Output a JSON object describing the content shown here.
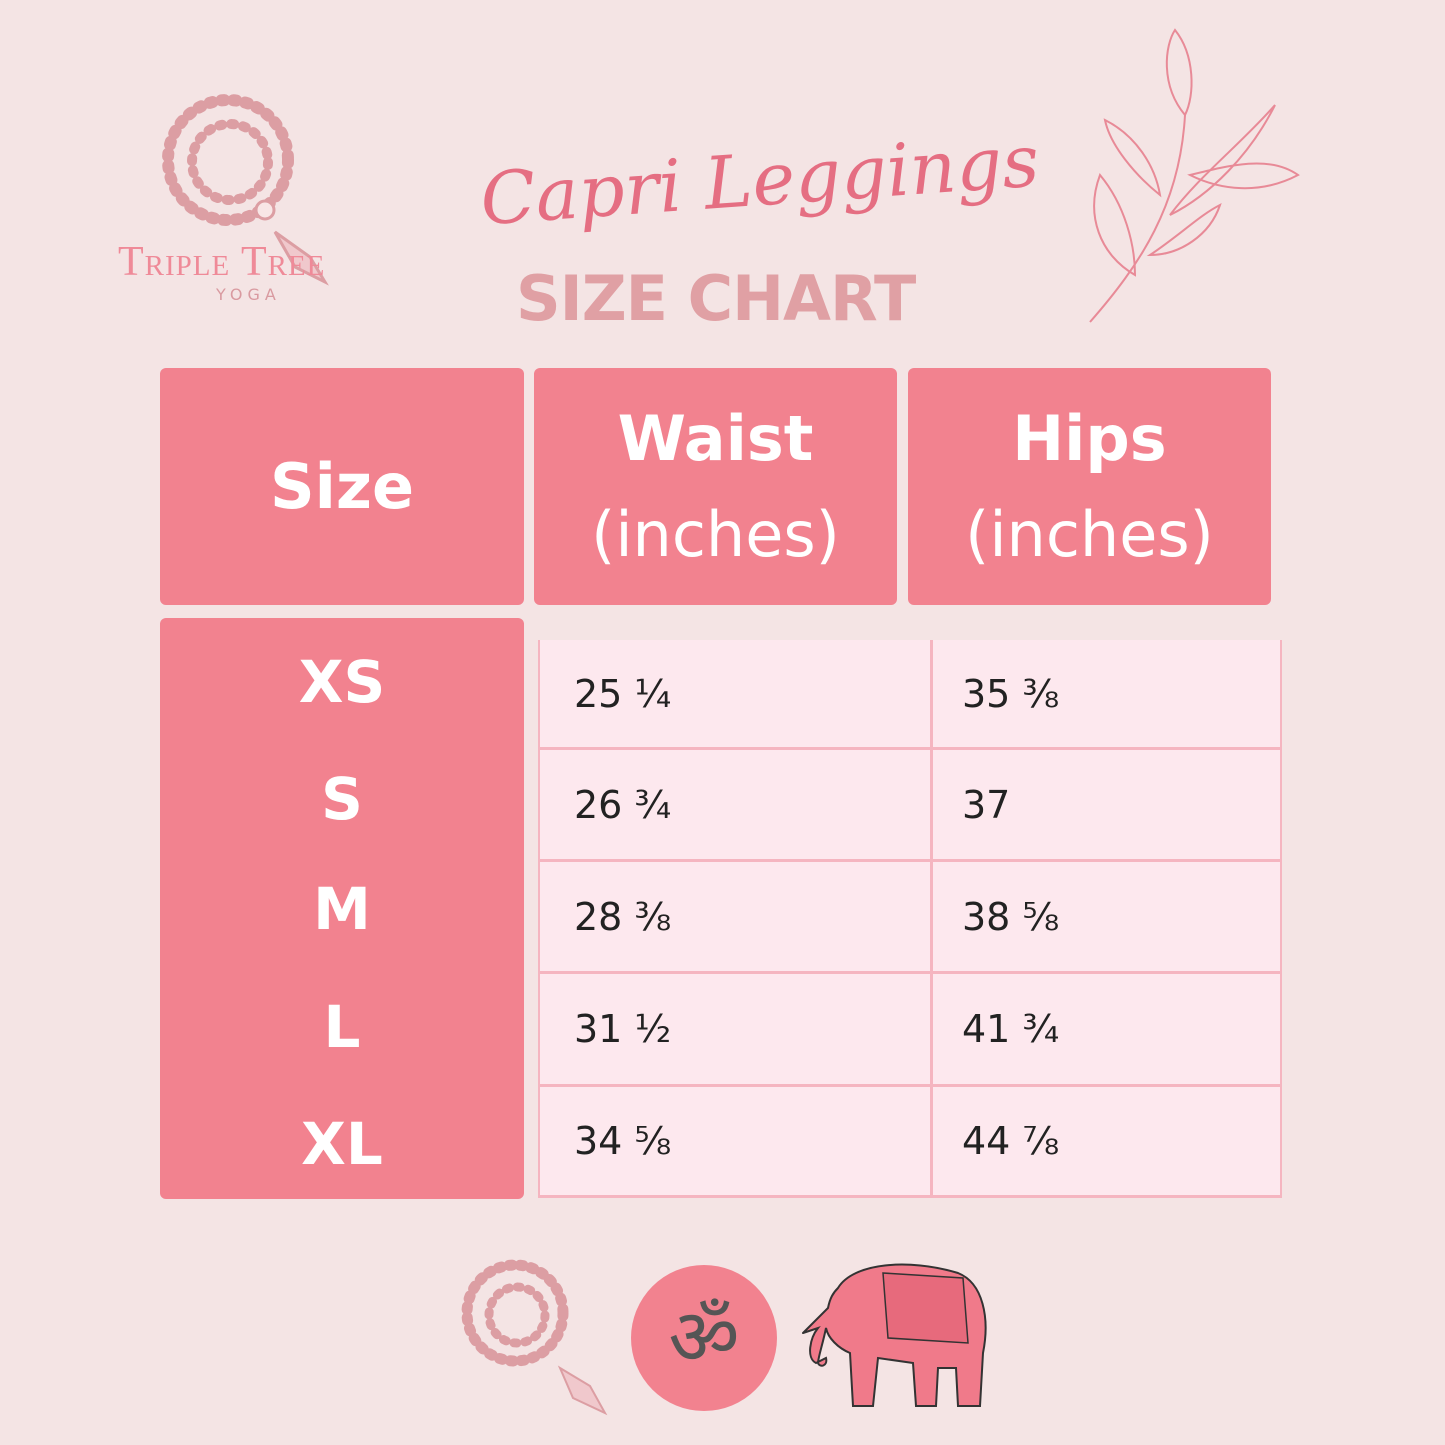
{
  "brand": {
    "name": "Triple Tree",
    "sub": "YOGA"
  },
  "title": {
    "script": "Capri Leggings",
    "main": "SIZE CHART"
  },
  "table": {
    "headers": {
      "size": "Size",
      "waist_line1": "Waist",
      "waist_line2": "(inches)",
      "hips_line1": "Hips",
      "hips_line2": "(inches)"
    },
    "rows": [
      {
        "size": "XS",
        "waist": "25 ¼",
        "hips": "35 ⅜"
      },
      {
        "size": "S",
        "waist": "26 ¾",
        "hips": "37"
      },
      {
        "size": "M",
        "waist": "28 ⅜",
        "hips": "38 ⅝"
      },
      {
        "size": "L",
        "waist": "31 ½",
        "hips": "41 ¾"
      },
      {
        "size": "XL",
        "waist": "34 ⅝",
        "hips": "44 ⅞"
      }
    ]
  },
  "icons": [
    "mala-beads-icon",
    "leaf-branch-icon",
    "om-icon",
    "elephant-icon"
  ],
  "colors": {
    "background": "#f4e4e4",
    "header": "#f2828f",
    "cell": "#fde8ee",
    "title": "#e56e82",
    "subtitle": "#e0a0a4"
  }
}
